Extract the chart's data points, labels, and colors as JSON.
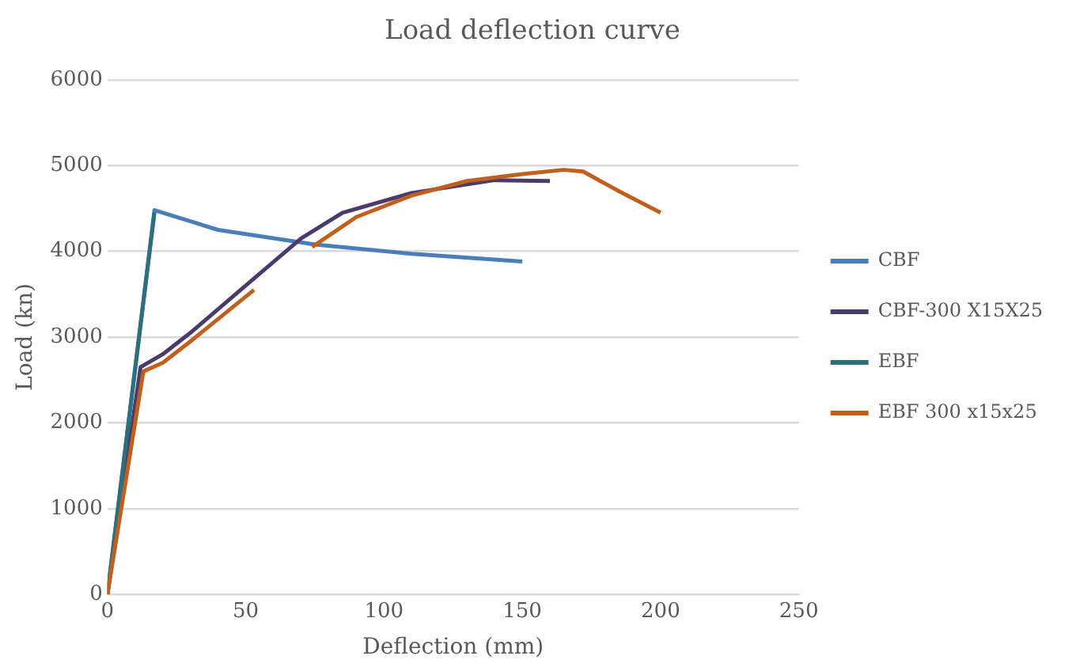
{
  "chart_data": {
    "type": "line",
    "title": "Load deflection curve",
    "xlabel": "Deflection (mm)",
    "ylabel": "Load (kn)",
    "xlim": [
      0,
      250
    ],
    "xticks": [
      0,
      50,
      100,
      150,
      200,
      250
    ],
    "ylim": [
      0,
      6000
    ],
    "yticks": [
      0,
      1000,
      2000,
      3000,
      4000,
      5000,
      6000
    ],
    "grid": "y",
    "legend": "right",
    "marker": "none",
    "line_style": "solid",
    "series": [
      {
        "name": "CBF",
        "color": "#4a7ebb",
        "x": [
          0,
          17,
          40,
          75,
          110,
          150
        ],
        "values": [
          0,
          4480,
          4250,
          4080,
          3970,
          3880
        ]
      },
      {
        "name": "CBF-300 X15X25",
        "color": "#4b3b6b",
        "x": [
          0,
          12,
          20,
          30,
          50,
          70,
          85,
          110,
          140,
          160
        ],
        "values": [
          0,
          2650,
          2800,
          3050,
          3600,
          4150,
          4450,
          4680,
          4830,
          4820
        ]
      },
      {
        "name": "EBF",
        "color": "#2e6f7e",
        "x": [
          0,
          17
        ],
        "values": [
          0,
          4450
        ]
      },
      {
        "name": "EBF 300 x15x25",
        "color": "#c0601c",
        "x": [
          0,
          13,
          20,
          30,
          53,
          63,
          74,
          90,
          110,
          130,
          150,
          165,
          172,
          185,
          200
        ],
        "values": [
          0,
          2600,
          2700,
          2950,
          3550,
          null,
          4050,
          4400,
          4650,
          4820,
          4900,
          4950,
          4930,
          4700,
          4450
        ]
      }
    ]
  }
}
